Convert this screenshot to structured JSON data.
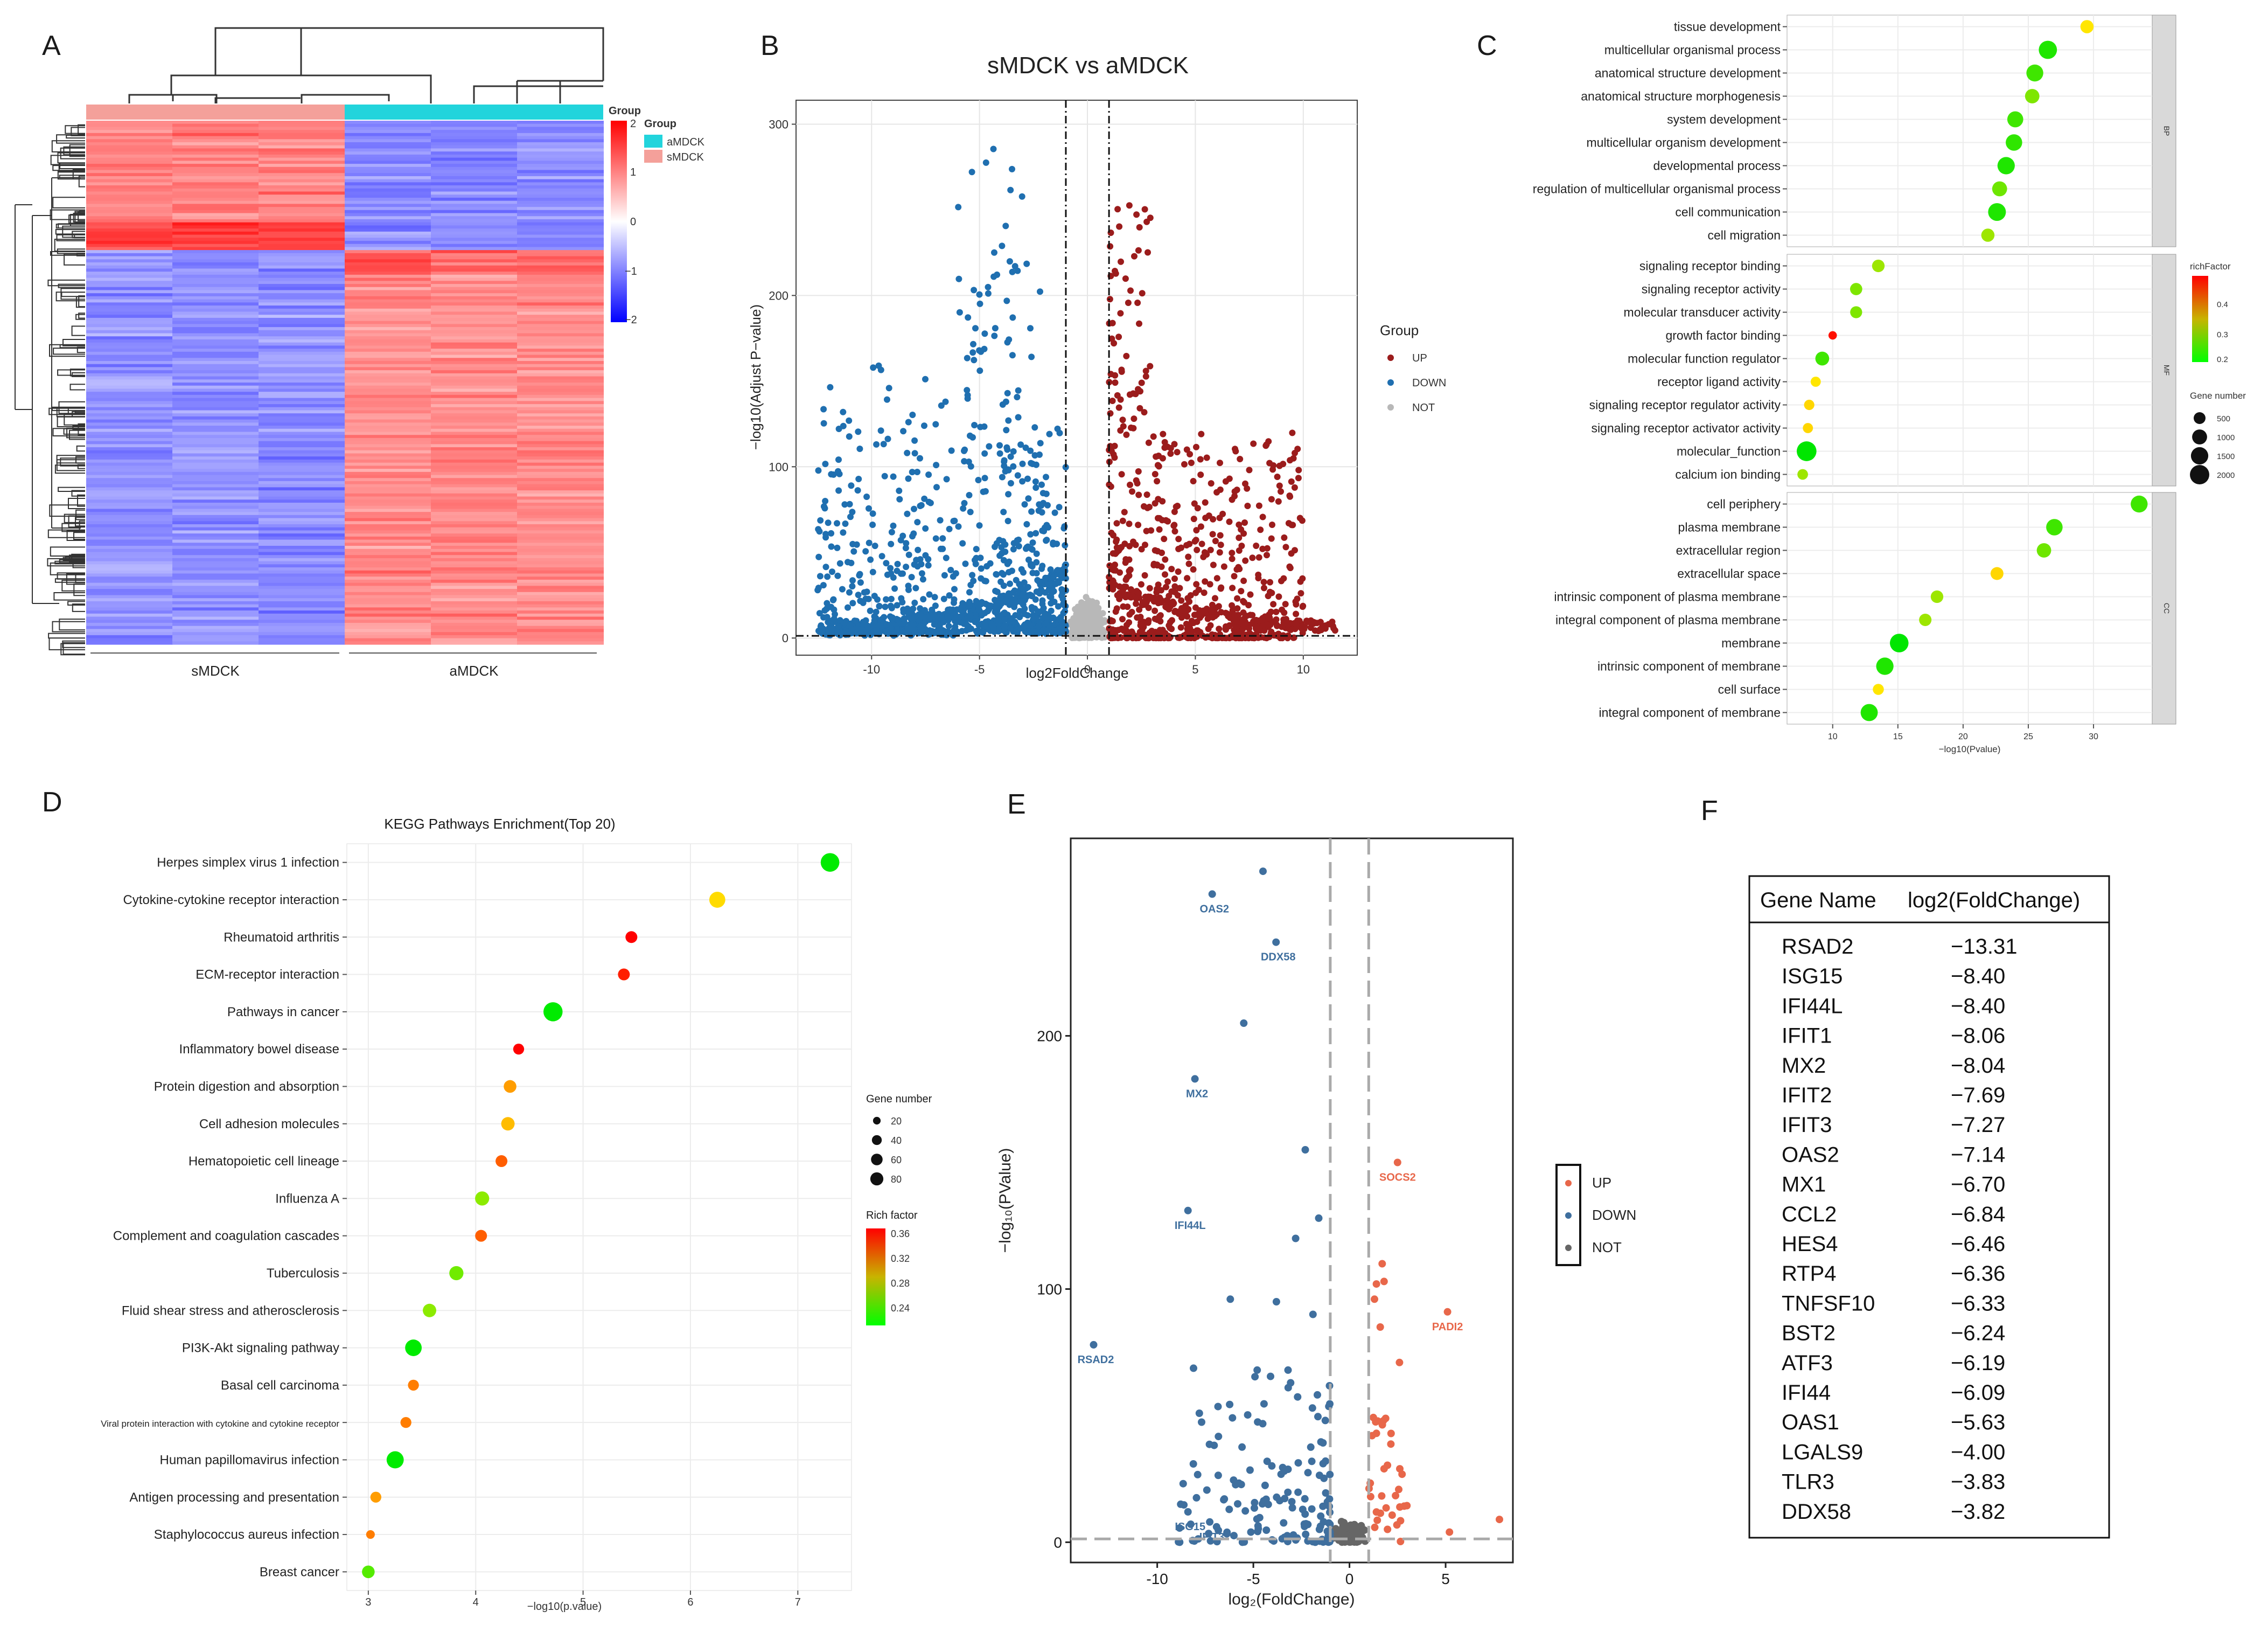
{
  "panels": [
    "A",
    "B",
    "C",
    "D",
    "E",
    "F"
  ],
  "heatmap": {
    "groups": [
      "sMDCK",
      "aMDCK"
    ],
    "legend_title": "Group",
    "legend_items": [
      {
        "label": "aMDCK",
        "color": "#22d4dc"
      },
      {
        "label": "sMDCK",
        "color": "#f4a09a"
      }
    ],
    "scale_title": "Group",
    "scale_ticks": [
      "2",
      "1",
      "0",
      "−1",
      "−2"
    ]
  },
  "volcanoB": {
    "title": "sMDCK vs aMDCK",
    "xlabel": "log2FoldChange",
    "ylabel": "−log10(Adjust P−value)",
    "xticks": [
      -10,
      -5,
      0,
      5,
      10
    ],
    "yticks": [
      0,
      100,
      200,
      300
    ],
    "legend_title": "Group",
    "legend": [
      {
        "label": "UP",
        "color": "#9b1c1c"
      },
      {
        "label": "DOWN",
        "color": "#1f6fb0"
      },
      {
        "label": "NOT",
        "color": "#b8b8b8"
      }
    ]
  },
  "goC": {
    "xlabel": "−log10(Pvalue)",
    "xticks": [
      10,
      15,
      20,
      25,
      30
    ],
    "facets": [
      "BP",
      "MF",
      "CC"
    ],
    "richfactor_title": "richFactor",
    "richfactor_ticks": [
      "0.4",
      "0.3",
      "0.2"
    ],
    "genenum_title": "Gene number",
    "genenum_ticks": [
      "500",
      "1000",
      "1500",
      "2000"
    ],
    "BP": [
      {
        "term": "tissue development",
        "x": 29.5,
        "rf": 0.32,
        "n": 700
      },
      {
        "term": "multicellular organismal process",
        "x": 26.5,
        "rf": 0.2,
        "n": 1700
      },
      {
        "term": "anatomical structure development",
        "x": 25.5,
        "rf": 0.22,
        "n": 1400
      },
      {
        "term": "anatomical structure morphogenesis",
        "x": 25.3,
        "rf": 0.26,
        "n": 900
      },
      {
        "term": "system development",
        "x": 24.0,
        "rf": 0.22,
        "n": 1200
      },
      {
        "term": "multicellular organism development",
        "x": 23.9,
        "rf": 0.21,
        "n": 1300
      },
      {
        "term": "developmental process",
        "x": 23.3,
        "rf": 0.2,
        "n": 1500
      },
      {
        "term": "regulation of multicellular organismal process",
        "x": 22.8,
        "rf": 0.25,
        "n": 1000
      },
      {
        "term": "cell communication",
        "x": 22.6,
        "rf": 0.2,
        "n": 1600
      },
      {
        "term": "cell migration",
        "x": 21.9,
        "rf": 0.28,
        "n": 700
      }
    ],
    "MF": [
      {
        "term": "signaling receptor binding",
        "x": 13.5,
        "rf": 0.28,
        "n": 600
      },
      {
        "term": "signaling receptor activity",
        "x": 11.8,
        "rf": 0.26,
        "n": 550
      },
      {
        "term": "molecular transducer activity",
        "x": 11.8,
        "rf": 0.26,
        "n": 520
      },
      {
        "term": "growth factor binding",
        "x": 10.0,
        "rf": 0.45,
        "n": 150
      },
      {
        "term": "molecular function regulator",
        "x": 9.2,
        "rf": 0.22,
        "n": 800
      },
      {
        "term": "receptor ligand activity",
        "x": 8.7,
        "rf": 0.32,
        "n": 300
      },
      {
        "term": "signaling receptor regulator activity",
        "x": 8.2,
        "rf": 0.33,
        "n": 320
      },
      {
        "term": "signaling receptor activator activity",
        "x": 8.1,
        "rf": 0.33,
        "n": 300
      },
      {
        "term": "molecular_function",
        "x": 8.0,
        "rf": 0.18,
        "n": 2100
      },
      {
        "term": "calcium ion binding",
        "x": 7.7,
        "rf": 0.28,
        "n": 350
      }
    ],
    "CC": [
      {
        "term": "cell periphery",
        "x": 33.5,
        "rf": 0.22,
        "n": 1400
      },
      {
        "term": "plasma membrane",
        "x": 27.0,
        "rf": 0.22,
        "n": 1300
      },
      {
        "term": "extracellular region",
        "x": 26.2,
        "rf": 0.25,
        "n": 900
      },
      {
        "term": "extracellular space",
        "x": 22.6,
        "rf": 0.33,
        "n": 650
      },
      {
        "term": "intrinsic component of plasma membrane",
        "x": 18.0,
        "rf": 0.28,
        "n": 600
      },
      {
        "term": "integral component of plasma membrane",
        "x": 17.1,
        "rf": 0.28,
        "n": 580
      },
      {
        "term": "membrane",
        "x": 15.1,
        "rf": 0.18,
        "n": 1800
      },
      {
        "term": "intrinsic component of membrane",
        "x": 14.0,
        "rf": 0.2,
        "n": 1500
      },
      {
        "term": "cell surface",
        "x": 13.5,
        "rf": 0.32,
        "n": 400
      },
      {
        "term": "integral component of membrane",
        "x": 12.8,
        "rf": 0.2,
        "n": 1450
      }
    ]
  },
  "chart_data": [
    {
      "type": "scatter",
      "title": "KEGG Pathways Enrichment(Top 20)",
      "xlabel": "−log10(p.value)",
      "xlim": [
        2.8,
        7.5
      ],
      "xticks": [
        3,
        4,
        5,
        6,
        7
      ],
      "size_legend_title": "Gene number",
      "size_ticks": [
        20,
        40,
        60,
        80
      ],
      "color_legend_title": "Rich factor",
      "color_ticks": [
        0.36,
        0.32,
        0.28,
        0.24
      ],
      "pathways": [
        {
          "name": "Herpes simplex virus 1 infection",
          "x": 7.3,
          "rich": 0.22,
          "genes": 80
        },
        {
          "name": "Cytokine-cytokine receptor interaction",
          "x": 6.25,
          "rich": 0.3,
          "genes": 55
        },
        {
          "name": "Rheumatoid arthritis",
          "x": 5.45,
          "rich": 0.37,
          "genes": 25
        },
        {
          "name": "ECM-receptor interaction",
          "x": 5.38,
          "rich": 0.36,
          "genes": 25
        },
        {
          "name": "Pathways in cancer",
          "x": 4.72,
          "rich": 0.22,
          "genes": 85
        },
        {
          "name": "Inflammatory bowel disease",
          "x": 4.4,
          "rich": 0.37,
          "genes": 20
        },
        {
          "name": "Protein digestion and absorption",
          "x": 4.32,
          "rich": 0.32,
          "genes": 30
        },
        {
          "name": "Cell adhesion molecules",
          "x": 4.3,
          "rich": 0.31,
          "genes": 35
        },
        {
          "name": "Hematopoietic cell lineage",
          "x": 4.24,
          "rich": 0.34,
          "genes": 25
        },
        {
          "name": "Influenza A",
          "x": 4.06,
          "rich": 0.27,
          "genes": 40
        },
        {
          "name": "Complement and coagulation cascades",
          "x": 4.05,
          "rich": 0.34,
          "genes": 25
        },
        {
          "name": "Tuberculosis",
          "x": 3.82,
          "rich": 0.26,
          "genes": 40
        },
        {
          "name": "Fluid shear stress and atherosclerosis",
          "x": 3.57,
          "rich": 0.27,
          "genes": 35
        },
        {
          "name": "PI3K-Akt signaling pathway",
          "x": 3.42,
          "rich": 0.22,
          "genes": 60
        },
        {
          "name": "Basal cell carcinoma",
          "x": 3.42,
          "rich": 0.33,
          "genes": 20
        },
        {
          "name": "Viral protein interaction with cytokine and cytokine receptor",
          "x": 3.35,
          "rich": 0.33,
          "genes": 20
        },
        {
          "name": "Human papillomavirus infection",
          "x": 3.25,
          "rich": 0.22,
          "genes": 65
        },
        {
          "name": "Antigen processing and presentation",
          "x": 3.07,
          "rich": 0.32,
          "genes": 20
        },
        {
          "name": "Staphylococcus aureus infection",
          "x": 3.02,
          "rich": 0.33,
          "genes": 10
        },
        {
          "name": "Breast cancer",
          "x": 3.0,
          "rich": 0.25,
          "genes": 30
        }
      ]
    },
    {
      "type": "scatter",
      "title": "",
      "xlabel": "log₂(FoldChange)",
      "ylabel": "−log₁₀(PValue)",
      "xlim": [
        -14.5,
        8.5
      ],
      "ylim": [
        -8,
        278
      ],
      "xticks": [
        -10,
        -5,
        0,
        5
      ],
      "yticks": [
        0,
        100,
        200
      ],
      "legend": [
        "UP",
        "DOWN",
        "NOT"
      ],
      "labeled_points": [
        {
          "label": "OAS2",
          "x": -7.14,
          "y": 256
        },
        {
          "label": "DDX58",
          "x": -3.82,
          "y": 237
        },
        {
          "label": "MX2",
          "x": -8.04,
          "y": 183
        },
        {
          "label": "SOCS2",
          "x": 2.5,
          "y": 150
        },
        {
          "label": "IFI44L",
          "x": -8.4,
          "y": 131
        },
        {
          "label": "PADI2",
          "x": 5.1,
          "y": 91
        },
        {
          "label": "RSAD2",
          "x": -13.31,
          "y": 78
        },
        {
          "label": "ISG15",
          "x": -8.4,
          "y": 12
        },
        {
          "label": "IFIT3",
          "x": -7.27,
          "y": 8
        }
      ]
    }
  ],
  "table": {
    "headers": [
      "Gene Name",
      "log2(FoldChange)"
    ],
    "rows": [
      [
        "RSAD2",
        "−13.31"
      ],
      [
        "ISG15",
        "−8.40"
      ],
      [
        "IFI44L",
        "−8.40"
      ],
      [
        "IFIT1",
        "−8.06"
      ],
      [
        "MX2",
        "−8.04"
      ],
      [
        "IFIT2",
        "−7.69"
      ],
      [
        "IFIT3",
        "−7.27"
      ],
      [
        "OAS2",
        "−7.14"
      ],
      [
        "MX1",
        "−6.70"
      ],
      [
        "CCL2",
        "−6.84"
      ],
      [
        "HES4",
        "−6.46"
      ],
      [
        "RTP4",
        "−6.36"
      ],
      [
        "TNFSF10",
        "−6.33"
      ],
      [
        "BST2",
        "−6.24"
      ],
      [
        "ATF3",
        "−6.19"
      ],
      [
        "IFI44",
        "−6.09"
      ],
      [
        "OAS1",
        "−5.63"
      ],
      [
        "LGALS9",
        "−4.00"
      ],
      [
        "TLR3",
        "−3.83"
      ],
      [
        "DDX58",
        "−3.82"
      ]
    ]
  }
}
